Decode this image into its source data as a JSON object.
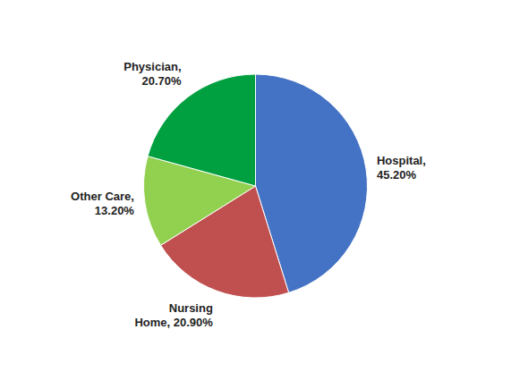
{
  "chart_data": {
    "type": "pie",
    "values": [
      45.2,
      20.9,
      13.2,
      20.7
    ],
    "value_labels": [
      "Hospital,\n45.20%",
      "Nursing\nHome, 20.90%",
      "Other Care,\n13.20%",
      "Physician,\n20.70%"
    ],
    "colors": [
      "#4472c4",
      "#c05050",
      "#92d050",
      "#00a040"
    ],
    "data_labels": true
  }
}
